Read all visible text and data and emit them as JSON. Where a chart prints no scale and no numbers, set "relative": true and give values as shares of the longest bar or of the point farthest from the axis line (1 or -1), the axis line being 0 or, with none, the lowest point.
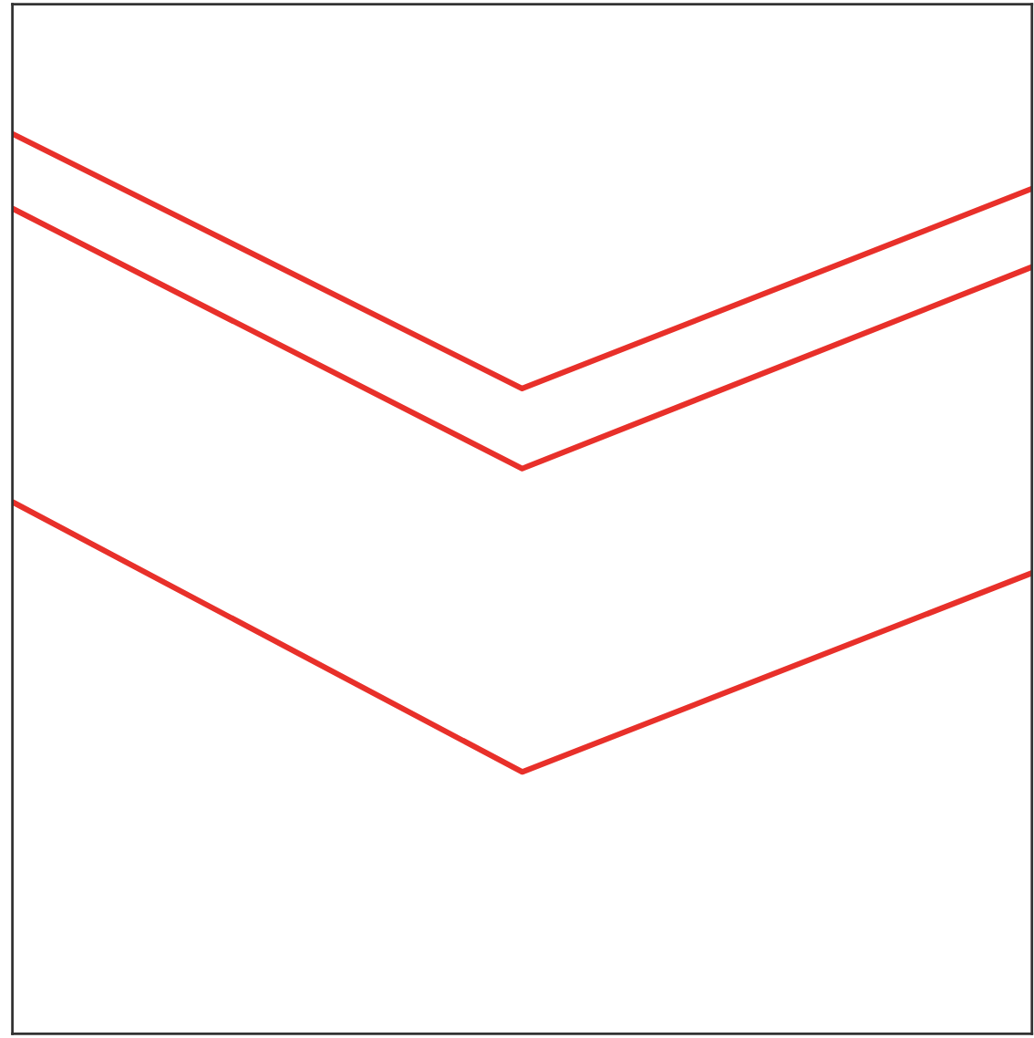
{
  "chart_data": {
    "type": "line",
    "relative": true,
    "categories": [
      null,
      null,
      null
    ],
    "series": [
      {
        "color": "#e8302a",
        "values": [
          1,
          0.717,
          0.939
        ]
      },
      {
        "color": "#e8302a",
        "values": [
          0.917,
          0.628,
          0.852
        ]
      },
      {
        "color": "#e8302a",
        "values": [
          0.591,
          0.291,
          0.512
        ]
      }
    ],
    "grid": false,
    "legend": false
  }
}
